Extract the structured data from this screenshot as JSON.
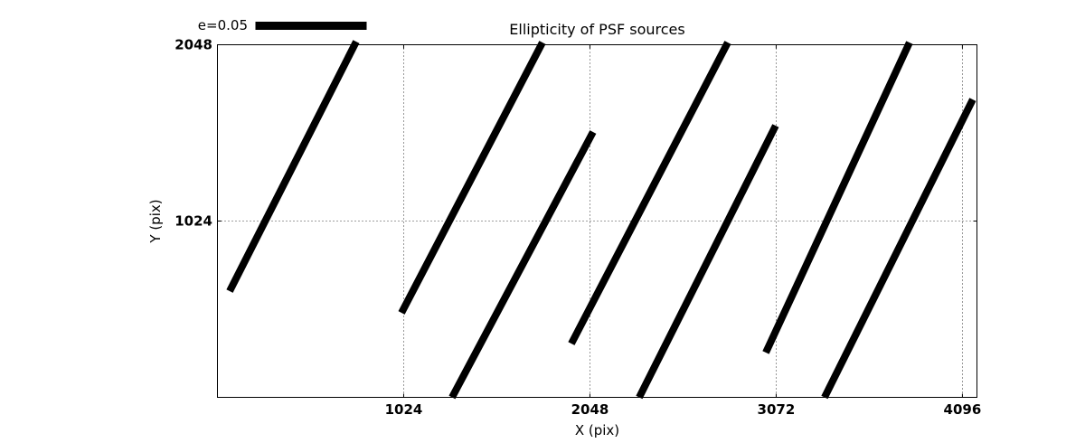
{
  "figure": {
    "title": "Ellipticity of PSF sources",
    "x_axis_label": "X (pix)",
    "y_axis_label": "Y (pix)",
    "legend_label": "e=0.05",
    "colors": {
      "foreground": "#000000",
      "background": "#ffffff"
    }
  },
  "chart_data": {
    "type": "line",
    "subtype": "quiver-whisker-segments",
    "title": "Ellipticity of PSF sources",
    "xlabel": "X (pix)",
    "ylabel": "Y (pix)",
    "xlim": [
      0,
      4176
    ],
    "ylim": [
      0,
      2048
    ],
    "xticks": [
      1024,
      2048,
      3072,
      4096
    ],
    "yticks": [
      1024,
      2048
    ],
    "grid": "dotted",
    "legend": {
      "label": "e=0.05",
      "position": "top-left-above-axes"
    },
    "segment_color": "#000000",
    "segment_stroke_px": 8,
    "segments": [
      {
        "x1": 67,
        "y1": 617,
        "x2": 763,
        "y2": 2066
      },
      {
        "x1": 1012,
        "y1": 491,
        "x2": 1787,
        "y2": 2061
      },
      {
        "x1": 1290,
        "y1": 0,
        "x2": 2065,
        "y2": 1541
      },
      {
        "x1": 1946,
        "y1": 312,
        "x2": 2806,
        "y2": 2061
      },
      {
        "x1": 2319,
        "y1": 0,
        "x2": 3069,
        "y2": 1578
      },
      {
        "x1": 3015,
        "y1": 260,
        "x2": 3805,
        "y2": 2061
      },
      {
        "x1": 3338,
        "y1": 0,
        "x2": 4153,
        "y2": 1730
      }
    ]
  }
}
